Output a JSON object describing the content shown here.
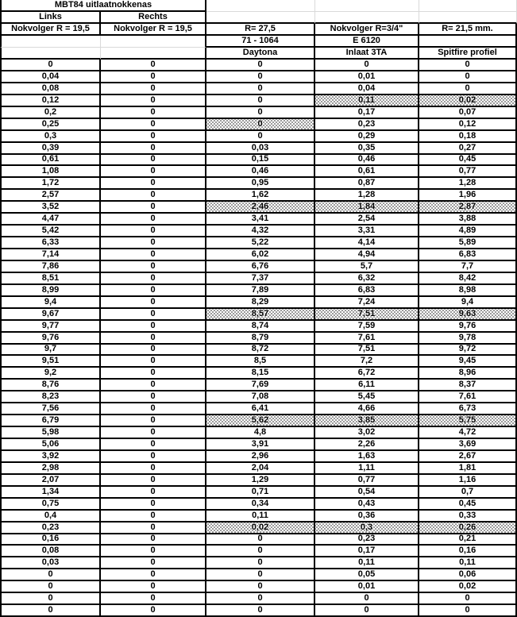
{
  "sheet": {
    "title": "MBT84 uitlaatnokkenas",
    "header": {
      "row2": [
        "Links",
        "Rechts",
        "",
        "",
        ""
      ],
      "row3": [
        "Nokvolger R = 19,5",
        "Nokvolger R = 19,5",
        "R= 27,5",
        "Nokvolger R=3/4\"",
        "R= 21,5 mm."
      ],
      "row4": [
        "",
        "",
        "71 - 1064",
        "E 6120",
        ""
      ],
      "row5": [
        "",
        "",
        "Daytona",
        "Inlaat 3TA",
        "Spitfire profiel"
      ]
    },
    "rows": [
      [
        "0",
        "0",
        "0",
        "0",
        "0"
      ],
      [
        "0,04",
        "0",
        "0",
        "0,01",
        "0"
      ],
      [
        "0,08",
        "0",
        "0",
        "0,04",
        "0"
      ],
      [
        "0,12",
        "0",
        "0",
        "0,11",
        "0,02"
      ],
      [
        "0,2",
        "0",
        "0",
        "0,17",
        "0,07"
      ],
      [
        "0,25",
        "0",
        "0",
        "0,23",
        "0,12"
      ],
      [
        "0,3",
        "0",
        "0",
        "0,29",
        "0,18"
      ],
      [
        "0,39",
        "0",
        "0,03",
        "0,35",
        "0,27"
      ],
      [
        "0,61",
        "0",
        "0,15",
        "0,46",
        "0,45"
      ],
      [
        "1,08",
        "0",
        "0,46",
        "0,61",
        "0,77"
      ],
      [
        "1,72",
        "0",
        "0,95",
        "0,87",
        "1,28"
      ],
      [
        "2,57",
        "0",
        "1,62",
        "1,28",
        "1,96"
      ],
      [
        "3,52",
        "0",
        "2,46",
        "1,84",
        "2,87"
      ],
      [
        "4,47",
        "0",
        "3,41",
        "2,54",
        "3,88"
      ],
      [
        "5,42",
        "0",
        "4,32",
        "3,31",
        "4,89"
      ],
      [
        "6,33",
        "0",
        "5,22",
        "4,14",
        "5,89"
      ],
      [
        "7,14",
        "0",
        "6,02",
        "4,94",
        "6,83"
      ],
      [
        "7,86",
        "0",
        "6,76",
        "5,7",
        "7,7"
      ],
      [
        "8,51",
        "0",
        "7,37",
        "6,32",
        "8,42"
      ],
      [
        "8,99",
        "0",
        "7,89",
        "6,83",
        "8,98"
      ],
      [
        "9,4",
        "0",
        "8,29",
        "7,24",
        "9,4"
      ],
      [
        "9,67",
        "0",
        "8,57",
        "7,51",
        "9,63"
      ],
      [
        "9,77",
        "0",
        "8,74",
        "7,59",
        "9,76"
      ],
      [
        "9,76",
        "0",
        "8,79",
        "7,61",
        "9,78"
      ],
      [
        "9,7",
        "0",
        "8,72",
        "7,51",
        "9,72"
      ],
      [
        "9,51",
        "0",
        "8,5",
        "7,2",
        "9,45"
      ],
      [
        "9,2",
        "0",
        "8,15",
        "6,72",
        "8,96"
      ],
      [
        "8,76",
        "0",
        "7,69",
        "6,11",
        "8,37"
      ],
      [
        "8,23",
        "0",
        "7,08",
        "5,45",
        "7,61"
      ],
      [
        "7,56",
        "0",
        "6,41",
        "4,66",
        "6,73"
      ],
      [
        "6,79",
        "0",
        "5,62",
        "3,85",
        "5,75"
      ],
      [
        "5,98",
        "0",
        "4,8",
        "3,02",
        "4,72"
      ],
      [
        "5,06",
        "0",
        "3,91",
        "2,26",
        "3,69"
      ],
      [
        "3,92",
        "0",
        "2,96",
        "1,63",
        "2,67"
      ],
      [
        "2,98",
        "0",
        "2,04",
        "1,11",
        "1,81"
      ],
      [
        "2,07",
        "0",
        "1,29",
        "0,77",
        "1,16"
      ],
      [
        "1,34",
        "0",
        "0,71",
        "0,54",
        "0,7"
      ],
      [
        "0,75",
        "0",
        "0,34",
        "0,43",
        "0,45"
      ],
      [
        "0,4",
        "0",
        "0,11",
        "0,36",
        "0,33"
      ],
      [
        "0,23",
        "0",
        "0,02",
        "0,3",
        "0,26"
      ],
      [
        "0,16",
        "0",
        "0",
        "0,23",
        "0,21"
      ],
      [
        "0,08",
        "0",
        "0",
        "0,17",
        "0,16"
      ],
      [
        "0,03",
        "0",
        "0",
        "0,11",
        "0,11"
      ],
      [
        "0",
        "0",
        "0",
        "0,05",
        "0,06"
      ],
      [
        "0",
        "0",
        "0",
        "0,01",
        "0,02"
      ],
      [
        "0",
        "0",
        "0",
        "0",
        "0"
      ],
      [
        "0",
        "0",
        "0",
        "0",
        "0"
      ]
    ],
    "hatched_cells": [
      [
        3,
        3
      ],
      [
        3,
        4
      ],
      [
        5,
        2
      ],
      [
        12,
        2
      ],
      [
        12,
        3
      ],
      [
        12,
        4
      ],
      [
        21,
        2
      ],
      [
        21,
        3
      ],
      [
        21,
        4
      ],
      [
        30,
        2
      ],
      [
        30,
        3
      ],
      [
        30,
        4
      ],
      [
        39,
        2
      ],
      [
        39,
        3
      ],
      [
        39,
        4
      ]
    ],
    "colors": {
      "border": "#000000",
      "gridline": "#d9d9d9",
      "text": "#000000",
      "background": "#ffffff",
      "hatch_dot": "#000000"
    }
  }
}
